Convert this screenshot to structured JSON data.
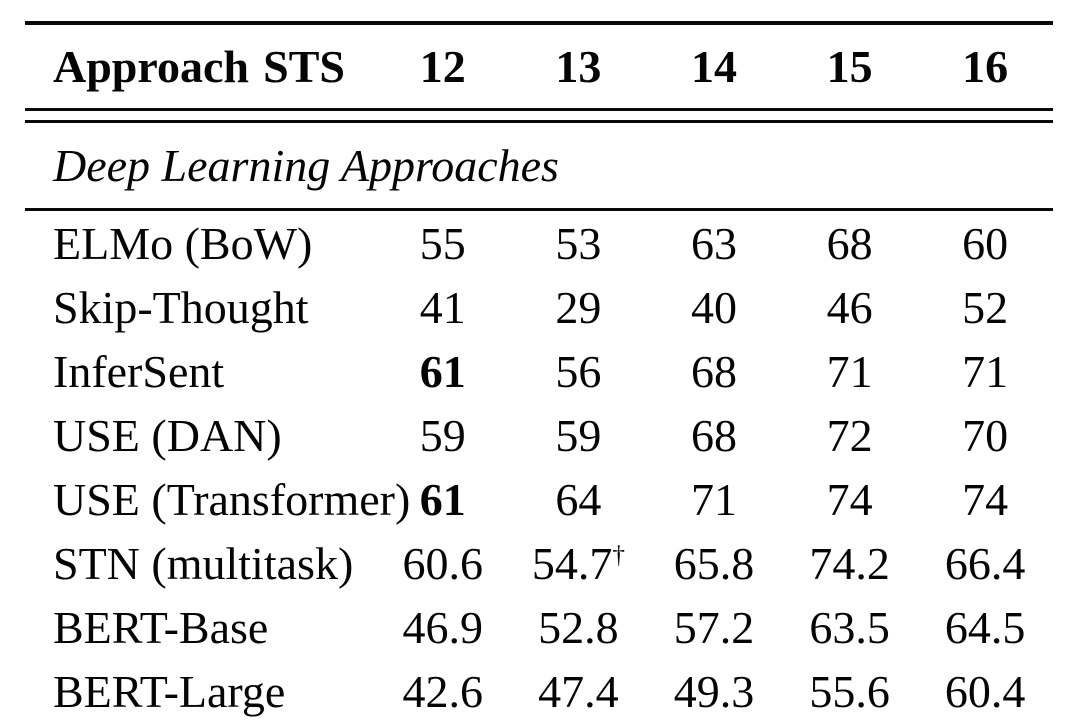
{
  "table": {
    "header": {
      "approach_label": "Approach",
      "benchmark_label": "STS",
      "years": [
        "12",
        "13",
        "14",
        "15",
        "16"
      ]
    },
    "section_title": "Deep Learning Approaches",
    "rows": [
      {
        "label": "ELMo (BoW)",
        "values": [
          "55",
          "53",
          "63",
          "68",
          "60"
        ]
      },
      {
        "label": "Skip-Thought",
        "values": [
          "41",
          "29",
          "40",
          "46",
          "52"
        ]
      },
      {
        "label": "InferSent",
        "values": [
          "61",
          "56",
          "68",
          "71",
          "71"
        ]
      },
      {
        "label": "USE (DAN)",
        "values": [
          "59",
          "59",
          "68",
          "72",
          "70"
        ]
      },
      {
        "label": "USE (Transformer)",
        "values": [
          "61",
          "64",
          "71",
          "74",
          "74"
        ]
      },
      {
        "label": "STN (multitask)",
        "values": [
          "60.6",
          "54.7",
          "65.8",
          "74.2",
          "66.4"
        ],
        "superscript": "†"
      },
      {
        "label": "BERT-Base",
        "values": [
          "46.9",
          "52.8",
          "57.2",
          "63.5",
          "64.5"
        ]
      },
      {
        "label": "BERT-Large",
        "values": [
          "42.6",
          "47.4",
          "49.3",
          "55.6",
          "60.4"
        ]
      }
    ]
  },
  "colors": {
    "background": "#ffffff",
    "text": "#050505",
    "rule": "#0a0a0a"
  }
}
